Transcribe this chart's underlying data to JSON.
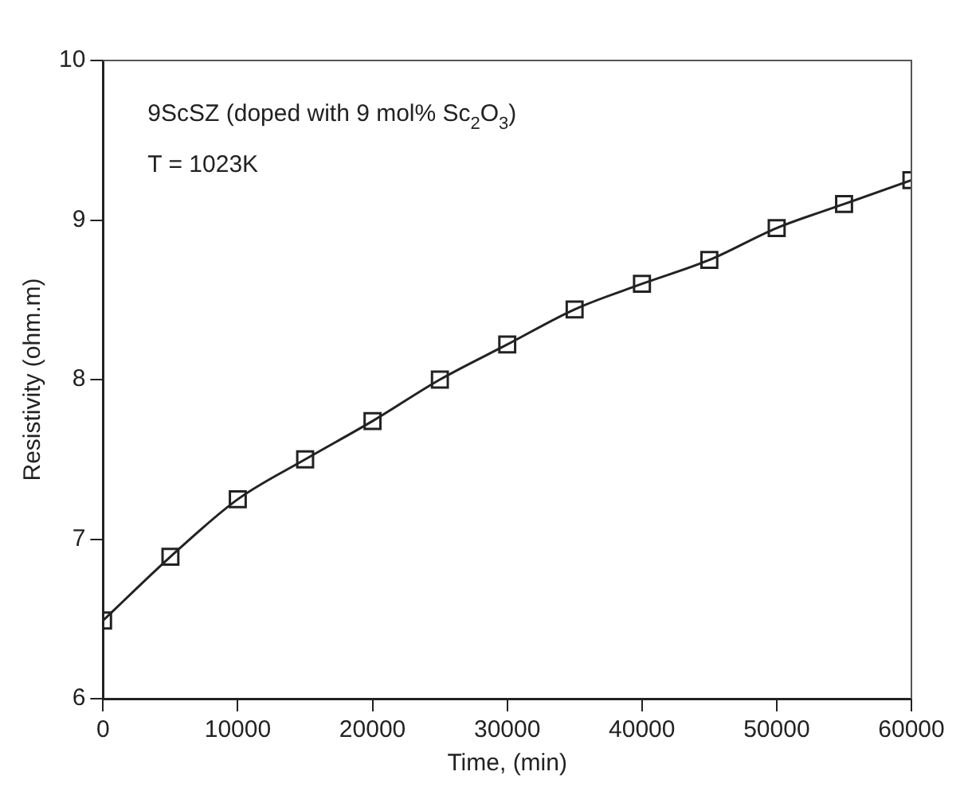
{
  "chart_data": {
    "type": "line",
    "xlabel": "Time, (min)",
    "ylabel": "Resistivity (ohm.m)",
    "x": [
      0,
      5000,
      10000,
      15000,
      20000,
      25000,
      30000,
      35000,
      40000,
      45000,
      50000,
      55000,
      60000
    ],
    "series": [
      {
        "color": "#222222",
        "values": [
          6.49,
          6.89,
          7.25,
          7.5,
          7.74,
          8.0,
          8.22,
          8.44,
          8.6,
          8.75,
          8.95,
          9.1,
          9.25
        ]
      }
    ],
    "xlim": [
      0,
      60000
    ],
    "xticks": [
      0,
      10000,
      20000,
      30000,
      40000,
      50000,
      60000
    ],
    "ylim": [
      6,
      10
    ],
    "yticks": [
      6,
      7,
      8,
      9,
      10
    ],
    "marker": "square",
    "line_style": "solid",
    "grid": false,
    "legend": false,
    "annotations": [
      "9ScSZ (doped with 9 mol% Sc$_{2}$O$_{3}$)",
      "T = 1023K"
    ]
  }
}
